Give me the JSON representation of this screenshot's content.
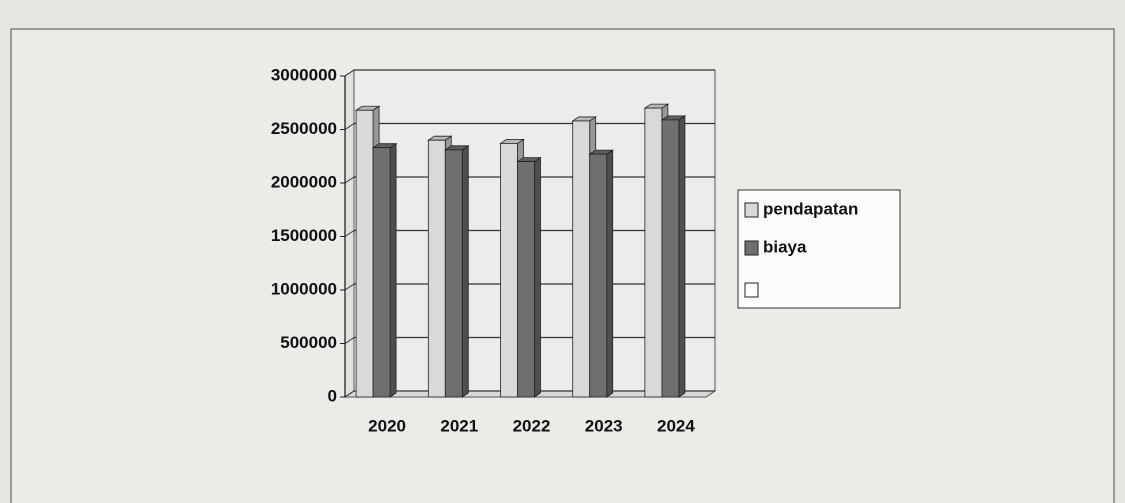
{
  "chart_data": {
    "type": "bar3d",
    "categories": [
      "2020",
      "2021",
      "2022",
      "2023",
      "2024"
    ],
    "series": [
      {
        "name": "pendapatan",
        "color": "#d9d9d7",
        "values": [
          2680000,
          2400000,
          2370000,
          2580000,
          2700000
        ]
      },
      {
        "name": "biaya",
        "color": "#6e706f",
        "values": [
          2330000,
          2310000,
          2200000,
          2270000,
          2590000
        ]
      }
    ],
    "ylim": [
      0,
      3000000
    ],
    "yticks": [
      0,
      500000,
      1000000,
      1500000,
      2000000,
      2500000,
      3000000
    ],
    "grid": true,
    "legend": "right"
  }
}
